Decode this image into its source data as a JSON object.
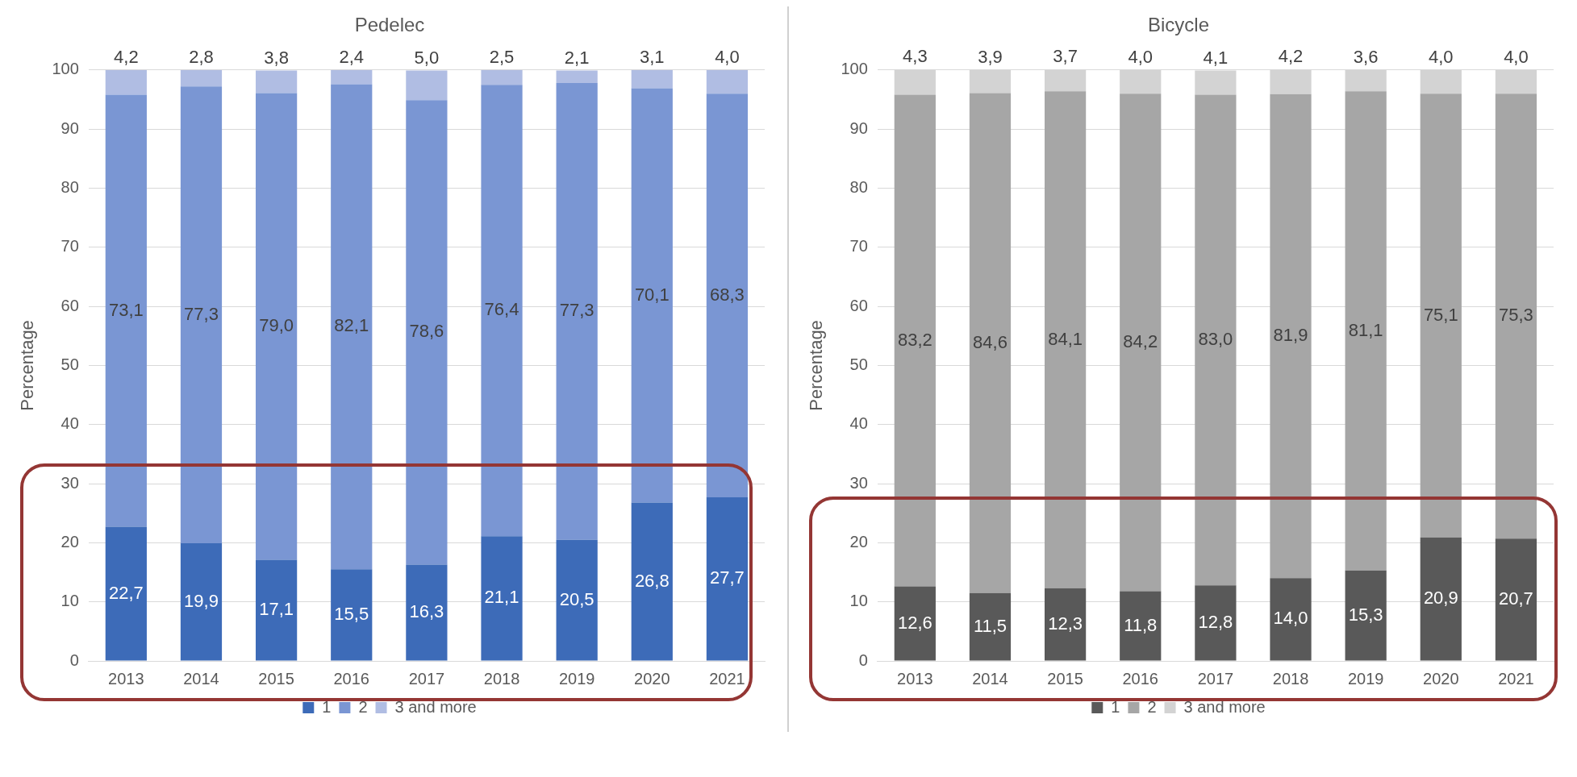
{
  "chart_data": [
    {
      "type": "bar",
      "title": "Pedelec",
      "ylabel": "Percentage",
      "categories": [
        "2013",
        "2014",
        "2015",
        "2016",
        "2017",
        "2018",
        "2019",
        "2020",
        "2021"
      ],
      "stacked": true,
      "ylim": [
        0,
        100
      ],
      "yticks": [
        0,
        10,
        20,
        30,
        40,
        50,
        60,
        70,
        80,
        90,
        100
      ],
      "grid": "y",
      "legend": "bottom",
      "series": [
        {
          "name": "1",
          "color": "#3d6bb8",
          "values": [
            22.7,
            19.9,
            17.1,
            15.5,
            16.3,
            21.1,
            20.5,
            26.8,
            27.7
          ],
          "value_labels": [
            "22,7",
            "19,9",
            "17,1",
            "15,5",
            "16,3",
            "21,1",
            "20,5",
            "26,8",
            "27,7"
          ]
        },
        {
          "name": "2",
          "color": "#7a96d3",
          "values": [
            73.1,
            77.3,
            79.0,
            82.1,
            78.6,
            76.4,
            77.3,
            70.1,
            68.3
          ],
          "value_labels": [
            "73,1",
            "77,3",
            "79,0",
            "82,1",
            "78,6",
            "76,4",
            "77,3",
            "70,1",
            "68,3"
          ]
        },
        {
          "name": "3 and more",
          "color": "#b0bde3",
          "values": [
            4.2,
            2.8,
            3.8,
            2.4,
            5.0,
            2.5,
            2.1,
            3.1,
            4.0
          ],
          "value_labels": [
            "4,2",
            "2,8",
            "3,8",
            "2,4",
            "5,0",
            "2,5",
            "2,1",
            "3,1",
            "4,0"
          ]
        }
      ]
    },
    {
      "type": "bar",
      "title": "Bicycle",
      "ylabel": "Percentage",
      "categories": [
        "2013",
        "2014",
        "2015",
        "2016",
        "2017",
        "2018",
        "2019",
        "2020",
        "2021"
      ],
      "stacked": true,
      "ylim": [
        0,
        100
      ],
      "yticks": [
        0,
        10,
        20,
        30,
        40,
        50,
        60,
        70,
        80,
        90,
        100
      ],
      "grid": "y",
      "legend": "bottom",
      "series": [
        {
          "name": "1",
          "color": "#595959",
          "values": [
            12.6,
            11.5,
            12.3,
            11.8,
            12.8,
            14.0,
            15.3,
            20.9,
            20.7
          ],
          "value_labels": [
            "12,6",
            "11,5",
            "12,3",
            "11,8",
            "12,8",
            "14,0",
            "15,3",
            "20,9",
            "20,7"
          ]
        },
        {
          "name": "2",
          "color": "#a6a6a6",
          "values": [
            83.2,
            84.6,
            84.1,
            84.2,
            83.0,
            81.9,
            81.1,
            75.1,
            75.3
          ],
          "value_labels": [
            "83,2",
            "84,6",
            "84,1",
            "84,2",
            "83,0",
            "81,9",
            "81,1",
            "75,1",
            "75,3"
          ]
        },
        {
          "name": "3 and more",
          "color": "#d3d3d3",
          "values": [
            4.3,
            3.9,
            3.7,
            4.0,
            4.1,
            4.2,
            3.6,
            4.0,
            4.0
          ],
          "value_labels": [
            "4,3",
            "3,9",
            "3,7",
            "4,0",
            "4,1",
            "4,2",
            "3,6",
            "4,0",
            "4,0"
          ]
        }
      ]
    }
  ]
}
